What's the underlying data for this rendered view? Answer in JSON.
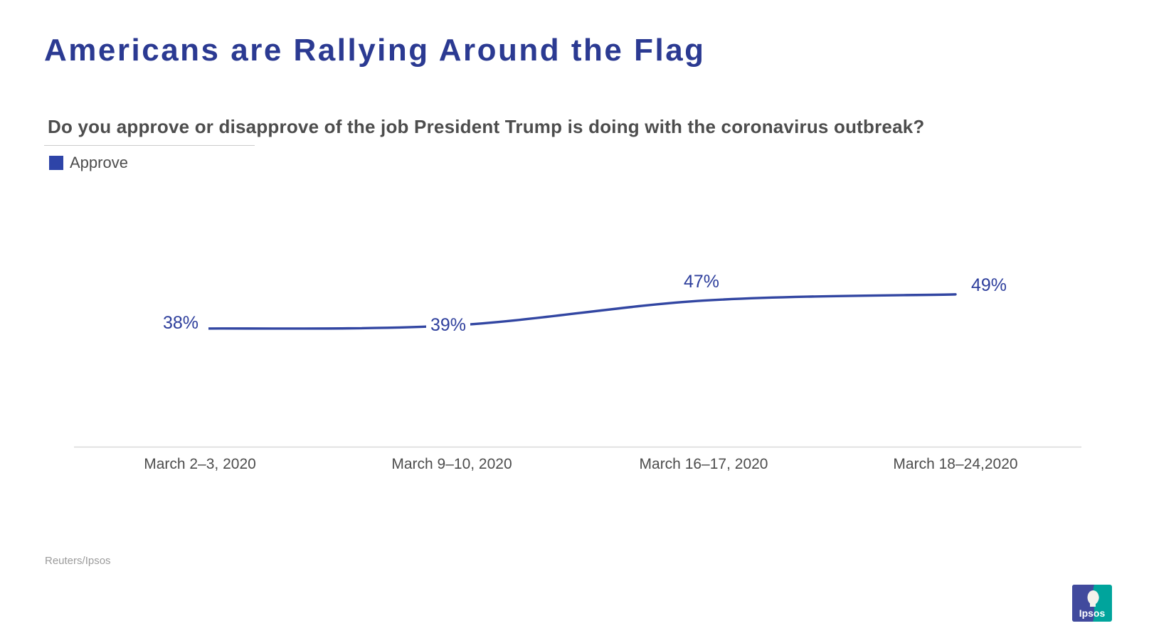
{
  "header": {
    "title": "Americans are Rallying Around the Flag"
  },
  "chart": {
    "question": "Do you approve or disapprove of the job President Trump is doing with the coronavirus outbreak?",
    "legend": {
      "label": "Approve"
    }
  },
  "chart_data": {
    "type": "line",
    "title": "Americans are Rallying Around the Flag",
    "subtitle": "Do you approve or disapprove of the job President Trump is doing with the coronavirus outbreak?",
    "categories": [
      "March 2–3, 2020",
      "March 9–10, 2020",
      "March 16–17, 2020",
      "March 18–24,2020"
    ],
    "series": [
      {
        "name": "Approve",
        "values": [
          38,
          39,
          47,
          49
        ]
      }
    ],
    "value_labels": [
      "38%",
      "39%",
      "47%",
      "49%"
    ],
    "ylim": [
      0,
      100
    ],
    "grid": false,
    "legend_position": "top-left",
    "line_color": "#3246a2"
  },
  "footer": {
    "source": "Reuters/Ipsos",
    "logo_text": "Ipsos"
  },
  "colors": {
    "title_blue": "#2b3a92",
    "line_blue": "#3246a2",
    "label_blue": "#2d3e9c",
    "swatch_blue": "#2e44a8",
    "text_gray": "#4d4d4d",
    "axis_line": "#d9d9d9",
    "source_gray": "#9b9b9b",
    "logo_blue": "#414a9d",
    "logo_teal": "#00a49c"
  }
}
